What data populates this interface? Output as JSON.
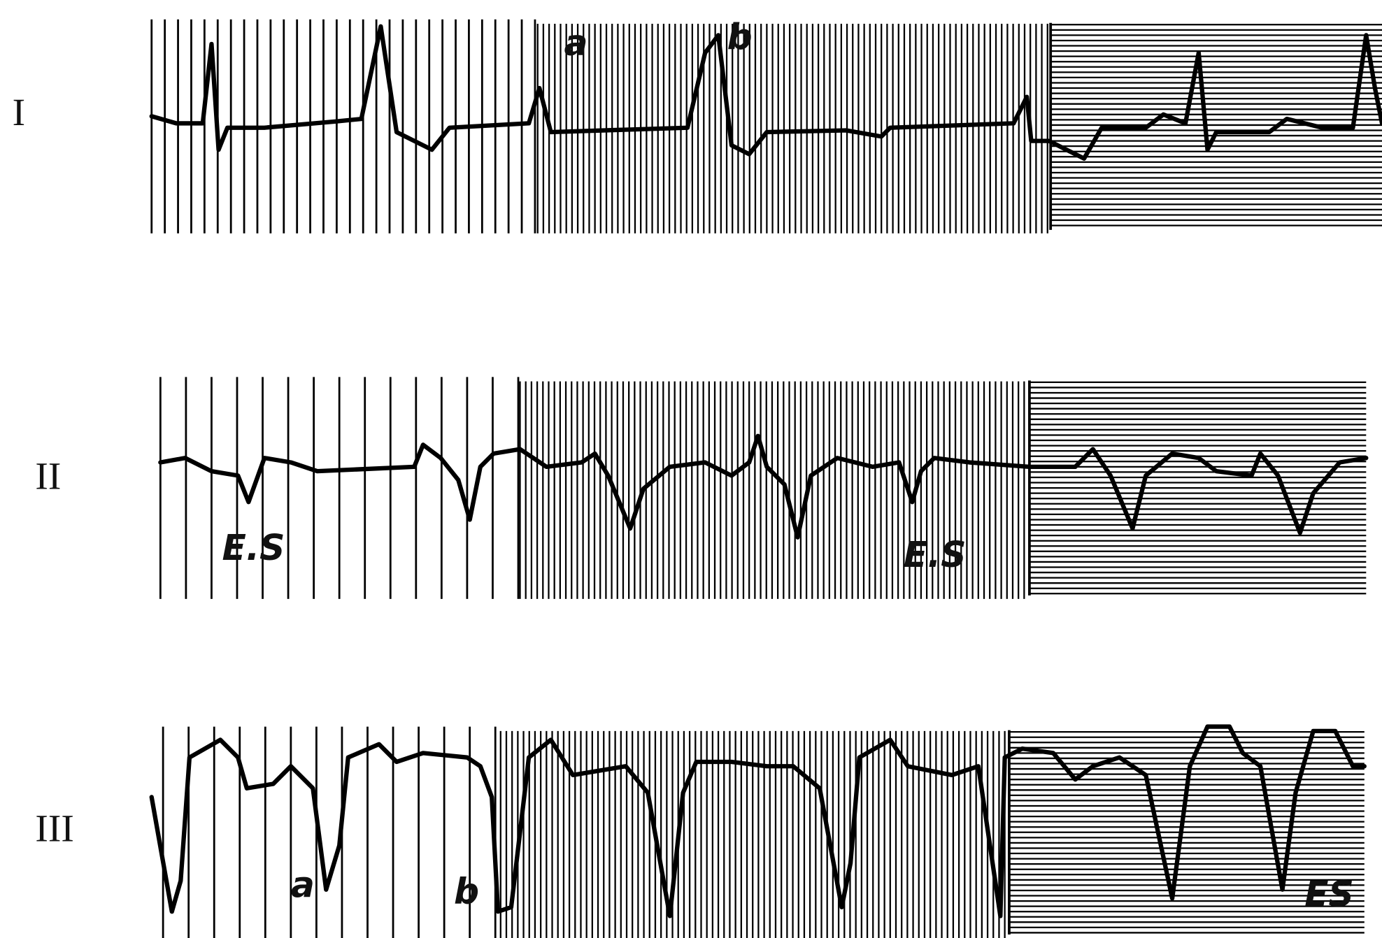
{
  "leads": [
    {
      "label": "I",
      "annotations": [
        "a",
        "b"
      ]
    },
    {
      "label": "II",
      "annotations": [
        "E.S",
        "E.S"
      ]
    },
    {
      "label": "III",
      "annotations": [
        "a",
        "b",
        "ES"
      ]
    }
  ]
}
